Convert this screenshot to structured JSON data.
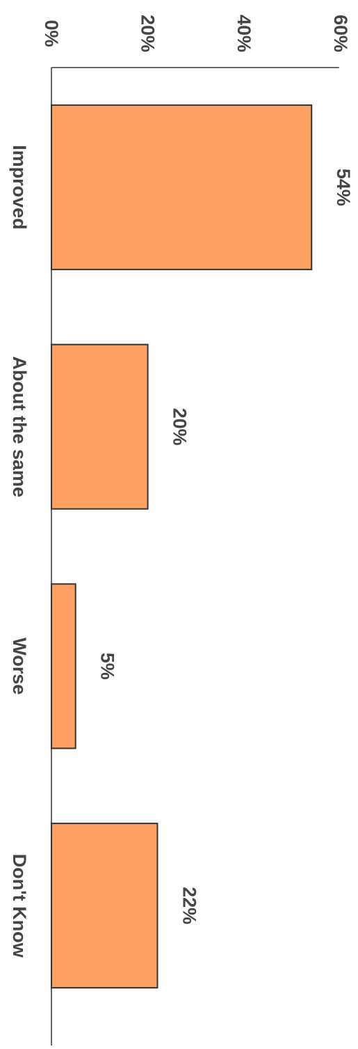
{
  "chart_data": {
    "type": "bar",
    "orientation": "vertical",
    "rotated": true,
    "categories": [
      "Improved",
      "About the same",
      "Worse",
      "Don't Know"
    ],
    "values": [
      54,
      20,
      5,
      22
    ],
    "data_labels": [
      "54%",
      "20%",
      "5%",
      "22%"
    ],
    "y_ticks": [
      0,
      20,
      40,
      60
    ],
    "y_tick_labels": [
      "0%",
      "20%",
      "40%",
      "60%"
    ],
    "ylim": [
      0,
      60
    ],
    "grid": false,
    "legend": "none",
    "bar_color": "#fca162",
    "bar_stroke": "#333333",
    "text_color": "#444444"
  }
}
